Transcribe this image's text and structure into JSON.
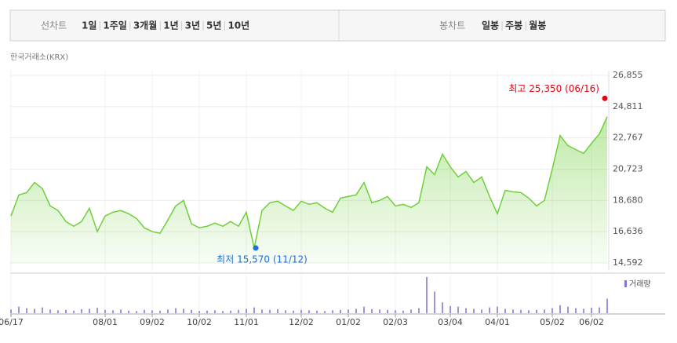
{
  "header": {
    "line_chart_label": "선차트",
    "periods": [
      "1일",
      "1주일",
      "3개월",
      "1년",
      "3년",
      "5년",
      "10년"
    ],
    "selected_period": "1년",
    "candle_label": "봉차트",
    "candles": [
      "일봉",
      "주봉",
      "월봉"
    ]
  },
  "chart_data": {
    "type": "line",
    "source": "한국거래소(KRX)",
    "color": "#6fcf3a",
    "categories": [
      "06/17",
      null,
      null,
      null,
      null,
      null,
      null,
      null,
      null,
      null,
      null,
      null,
      "08/01",
      null,
      null,
      null,
      null,
      null,
      "09/02",
      null,
      null,
      null,
      null,
      null,
      "10/02",
      null,
      null,
      null,
      null,
      null,
      "11/01",
      null,
      null,
      null,
      null,
      null,
      null,
      "12/02",
      null,
      null,
      null,
      null,
      null,
      "01/02",
      null,
      null,
      null,
      null,
      null,
      "02/03",
      null,
      null,
      null,
      null,
      null,
      null,
      "03/04",
      null,
      null,
      null,
      null,
      null,
      "04/01",
      null,
      null,
      null,
      null,
      null,
      null,
      "05/02",
      null,
      null,
      null,
      null,
      "06/02",
      null,
      null
    ],
    "values": [
      17660,
      19040,
      19190,
      19850,
      19450,
      18320,
      18020,
      17300,
      16990,
      17300,
      18170,
      16640,
      17660,
      17910,
      18020,
      17810,
      17500,
      16890,
      16640,
      16530,
      17400,
      18320,
      18680,
      17150,
      16890,
      16990,
      17200,
      16990,
      17300,
      16990,
      17910,
      15570,
      18020,
      18530,
      18630,
      18320,
      18020,
      18630,
      18420,
      18530,
      18170,
      17910,
      18830,
      18940,
      19040,
      19850,
      18530,
      18680,
      18940,
      18320,
      18420,
      18220,
      18530,
      20880,
      20370,
      21700,
      20880,
      20210,
      20570,
      19850,
      20210,
      18940,
      17810,
      19340,
      19240,
      19190,
      18830,
      18320,
      18680,
      20720,
      22920,
      22260,
      22000,
      21750,
      22410,
      23020,
      24150
    ],
    "ylim": [
      14592,
      26855
    ],
    "yticks": [
      {
        "value": 14592,
        "label": "14,592"
      },
      {
        "value": 16636,
        "label": "16,636"
      },
      {
        "value": 18680,
        "label": "18,680"
      },
      {
        "value": 20723,
        "label": "20,723"
      },
      {
        "value": 22767,
        "label": "22,767"
      },
      {
        "value": 24811,
        "label": "24,811"
      },
      {
        "value": 26855,
        "label": "26,855"
      }
    ],
    "grid": true,
    "annotations": [
      {
        "label": "최고 25,350 (06/16)",
        "value": 25350,
        "color": "#e60012"
      },
      {
        "label": "최저 15,570 (11/12)",
        "value": 15570,
        "color": "#1e6fe0"
      }
    ],
    "volume": {
      "name": "거래량",
      "color": "#8877cc",
      "values": [
        10,
        18,
        14,
        12,
        16,
        10,
        8,
        9,
        7,
        11,
        12,
        15,
        9,
        8,
        10,
        7,
        6,
        9,
        8,
        7,
        10,
        14,
        12,
        9,
        6,
        7,
        8,
        6,
        7,
        9,
        12,
        16,
        10,
        9,
        11,
        8,
        7,
        9,
        8,
        7,
        6,
        8,
        9,
        10,
        12,
        18,
        11,
        10,
        9,
        8,
        7,
        10,
        14,
        100,
        60,
        30,
        20,
        18,
        14,
        12,
        10,
        16,
        18,
        12,
        10,
        9,
        8,
        9,
        10,
        14,
        22,
        18,
        14,
        12,
        15,
        16,
        40
      ]
    }
  }
}
